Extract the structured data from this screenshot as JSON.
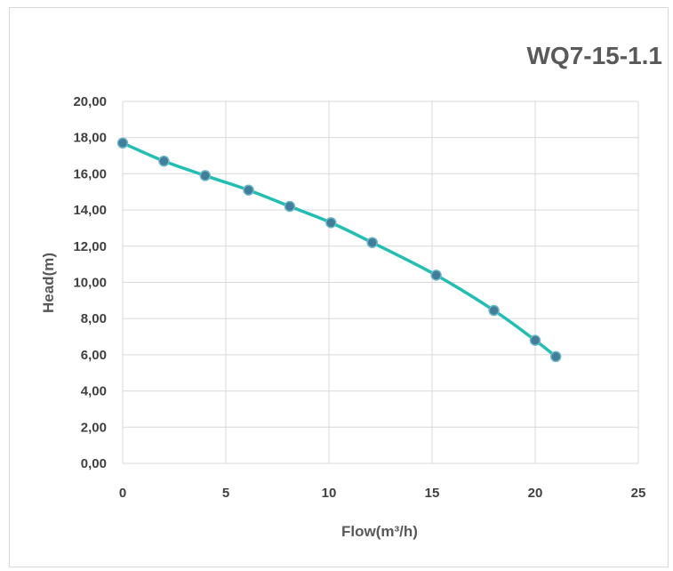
{
  "chart_data": {
    "type": "line",
    "title": "WQ7-15-1.1",
    "xlabel": "Flow(m³/h)",
    "ylabel": "Head(m)",
    "xlim": [
      0,
      25
    ],
    "ylim": [
      0,
      20
    ],
    "x_ticks": [
      "0",
      "5",
      "10",
      "15",
      "20",
      "25"
    ],
    "y_ticks": [
      "0,00",
      "2,00",
      "4,00",
      "6,00",
      "8,00",
      "10,00",
      "12,00",
      "14,00",
      "16,00",
      "18,00",
      "20,00"
    ],
    "grid": true,
    "line_color": "#1fbfb4",
    "marker_color": "#3f7f99",
    "series": [
      {
        "x": [
          0,
          2,
          4,
          6.1,
          8.1,
          10.1,
          12.1,
          15.2,
          18,
          20,
          21
        ],
        "y": [
          17.7,
          16.7,
          15.9,
          15.1,
          14.2,
          13.3,
          12.2,
          10.4,
          8.45,
          6.8,
          5.9
        ]
      }
    ]
  }
}
